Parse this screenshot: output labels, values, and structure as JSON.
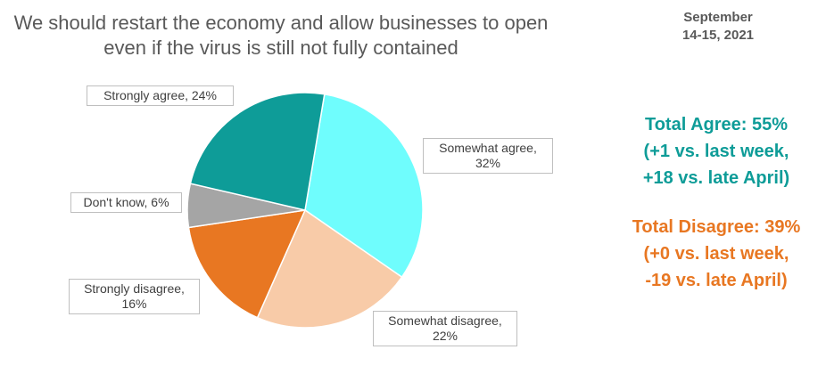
{
  "chart_data": {
    "type": "pie",
    "title": "We should restart the economy and allow businesses to open even if the virus is still not fully contained",
    "date": [
      "September",
      "14-15, 2021"
    ],
    "agree_note": [
      "Total Agree: 55%",
      "(+1 vs. last week,",
      "+18 vs. late April)"
    ],
    "agree_color": "#0e9c98",
    "disagree_note": [
      "Total Disagree: 39%",
      "(+0 vs. last week,",
      "-19 vs. late April)"
    ],
    "disagree_color": "#e87722",
    "values": [
      32,
      22,
      16,
      6,
      24
    ],
    "value_labels": [
      "Somewhat agree, 32%",
      "Somewhat disagree, 22%",
      "Strongly disagree, 16%",
      "Don't know, 6%",
      "Strongly agree, 24%"
    ],
    "colors": [
      "#6ffdfd",
      "#f8cba8",
      "#e87722",
      "#a5a5a5",
      "#0e9c98"
    ]
  }
}
